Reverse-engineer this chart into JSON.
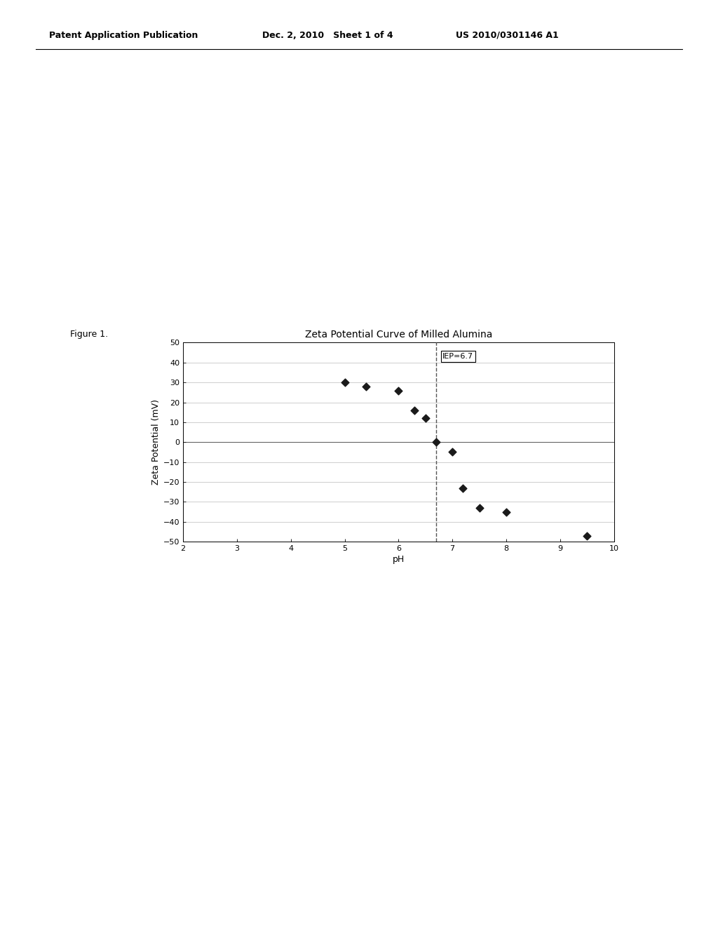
{
  "title": "Zeta Potential Curve of Milled Alumina",
  "xlabel": "pH",
  "ylabel": "Zeta Potential (mV)",
  "xlim": [
    2,
    10
  ],
  "ylim": [
    -50,
    50
  ],
  "xticks": [
    2,
    3,
    4,
    5,
    6,
    7,
    8,
    9,
    10
  ],
  "yticks": [
    -50,
    -40,
    -30,
    -20,
    -10,
    0,
    10,
    20,
    30,
    40,
    50
  ],
  "data_x": [
    5.0,
    5.4,
    6.0,
    6.3,
    6.5,
    6.7,
    7.0,
    7.2,
    7.5,
    8.0,
    9.5
  ],
  "data_y": [
    30,
    28,
    26,
    16,
    12,
    0,
    -5,
    -23,
    -33,
    -35,
    -47
  ],
  "iep_x": 6.7,
  "iep_label": "IEP=6.7",
  "header_left": "Patent Application Publication",
  "header_center": "Dec. 2, 2010   Sheet 1 of 4",
  "header_right": "US 2010/0301146 A1",
  "figure_label": "Figure 1.",
  "background_color": "#ffffff",
  "plot_bg_color": "#ffffff",
  "grid_color": "#bbbbbb",
  "marker_color": "#1a1a1a",
  "dashed_line_color": "#555555",
  "title_fontsize": 10,
  "axis_label_fontsize": 9,
  "tick_fontsize": 8,
  "header_fontsize": 9,
  "figure_label_fontsize": 9
}
